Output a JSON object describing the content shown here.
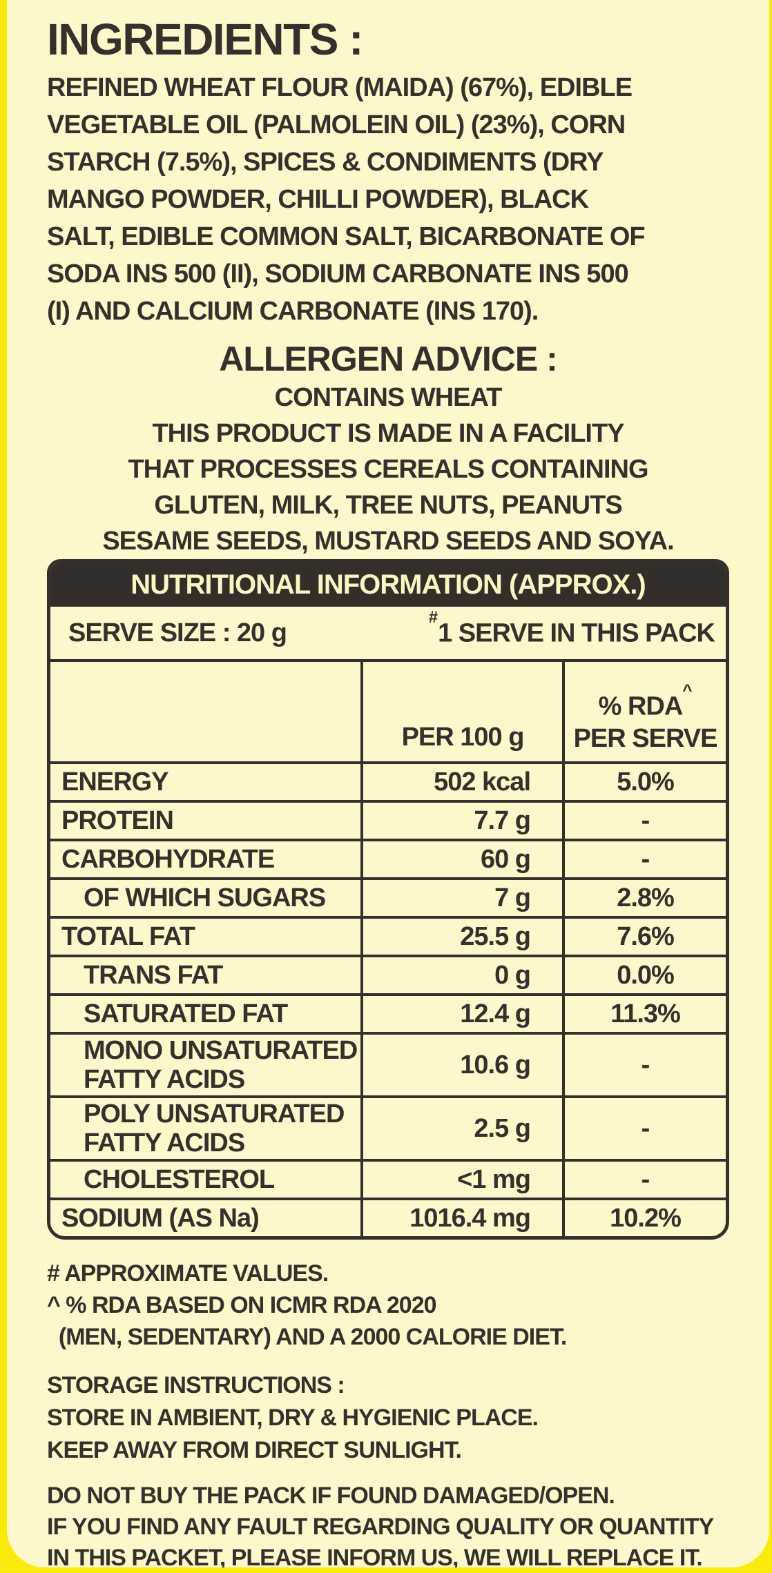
{
  "colors": {
    "background_yellow": "#F9E90D",
    "panel_cream": "#FCF8CC",
    "text_dark": "#35302B",
    "table_header_bg": "#332E2A",
    "table_header_text": "#FAF5C3"
  },
  "ingredients": {
    "title": "INGREDIENTS :",
    "body_lines": [
      "REFINED WHEAT FLOUR (MAIDA) (67%), EDIBLE",
      "VEGETABLE OIL (PALMOLEIN OIL) (23%), CORN",
      "STARCH (7.5%), SPICES & CONDIMENTS (DRY",
      "MANGO POWDER, CHILLI POWDER), BLACK",
      "SALT, EDIBLE COMMON SALT, BICARBONATE OF",
      "SODA INS 500 (II), SODIUM CARBONATE INS 500",
      "(I) AND CALCIUM CARBONATE (INS 170)."
    ]
  },
  "allergen": {
    "title": "ALLERGEN ADVICE :",
    "lines": [
      "CONTAINS WHEAT",
      "THIS PRODUCT IS MADE IN A FACILITY",
      "THAT PROCESSES CEREALS CONTAINING",
      "GLUTEN, MILK, TREE NUTS, PEANUTS",
      "SESAME SEEDS, MUSTARD SEEDS AND SOYA."
    ]
  },
  "nutrition": {
    "title": "NUTRITIONAL INFORMATION (APPROX.)",
    "serve_size_label": "SERVE SIZE : 20 g",
    "serve_pack_sup": "#",
    "serve_pack_label": "1 SERVE IN THIS PACK",
    "col2_header": "PER 100 g",
    "col3_header_line1": "% RDA",
    "col3_header_sup": "^",
    "col3_header_line2": "PER SERVE",
    "rows": [
      {
        "label": "ENERGY",
        "per100": "502 kcal",
        "rda": "5.0%"
      },
      {
        "label": "PROTEIN",
        "per100": "7.7 g",
        "rda": "-"
      },
      {
        "label": "CARBOHYDRATE",
        "per100": "60 g",
        "rda": "-"
      },
      {
        "label": "OF WHICH SUGARS",
        "per100": "7 g",
        "rda": "2.8%"
      },
      {
        "label": "TOTAL FAT",
        "per100": "25.5 g",
        "rda": "7.6%"
      },
      {
        "label": "TRANS FAT",
        "per100": "0 g",
        "rda": "0.0%"
      },
      {
        "label": "SATURATED FAT",
        "per100": "12.4 g",
        "rda": "11.3%"
      },
      {
        "label": [
          "MONO UNSATURATED",
          "FATTY ACIDS"
        ],
        "per100": "10.6 g",
        "rda": "-"
      },
      {
        "label": [
          "POLY UNSATURATED",
          "FATTY ACIDS"
        ],
        "per100": "2.5 g",
        "rda": "-"
      },
      {
        "label": "CHOLESTEROL",
        "per100": "<1 mg",
        "rda": "-"
      },
      {
        "label": "SODIUM (AS Na)",
        "per100": "1016.4 mg",
        "rda": "10.2%"
      }
    ]
  },
  "footnotes": {
    "lines": [
      "# APPROXIMATE VALUES.",
      "^ % RDA BASED ON ICMR RDA 2020",
      "  (MEN, SEDENTARY) AND A 2000 CALORIE DIET."
    ]
  },
  "storage": {
    "title": "STORAGE INSTRUCTIONS :",
    "lines": [
      "STORE IN AMBIENT, DRY & HYGIENIC PLACE.",
      "KEEP AWAY FROM DIRECT SUNLIGHT."
    ]
  },
  "warning": {
    "lines": [
      "DO NOT BUY THE PACK IF FOUND DAMAGED/OPEN.",
      "IF YOU FIND ANY FAULT REGARDING QUALITY OR QUANTITY",
      "IN THIS PACKET, PLEASE INFORM US, WE WILL REPLACE IT."
    ]
  }
}
